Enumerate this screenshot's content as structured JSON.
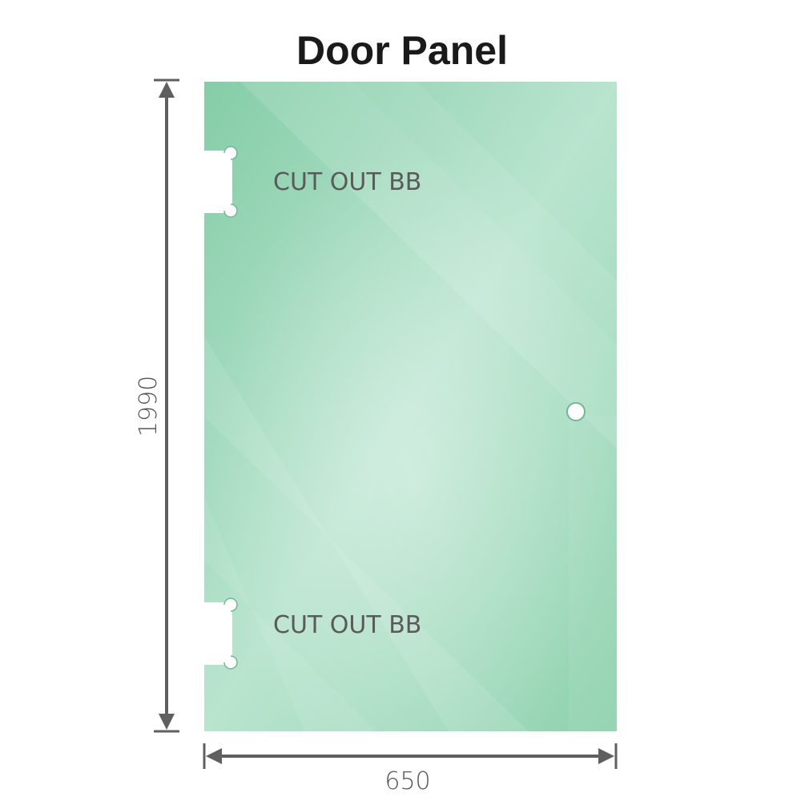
{
  "title": "Door Panel",
  "height_label": "1990",
  "width_label": "650",
  "cutouts": [
    {
      "label": "CUT OUT BB"
    },
    {
      "label": "CUT OUT BB"
    }
  ],
  "colors": {
    "glass": "#86cfa8",
    "glass_light": "#bfe6d3",
    "dimension": "#5f5f5f"
  }
}
